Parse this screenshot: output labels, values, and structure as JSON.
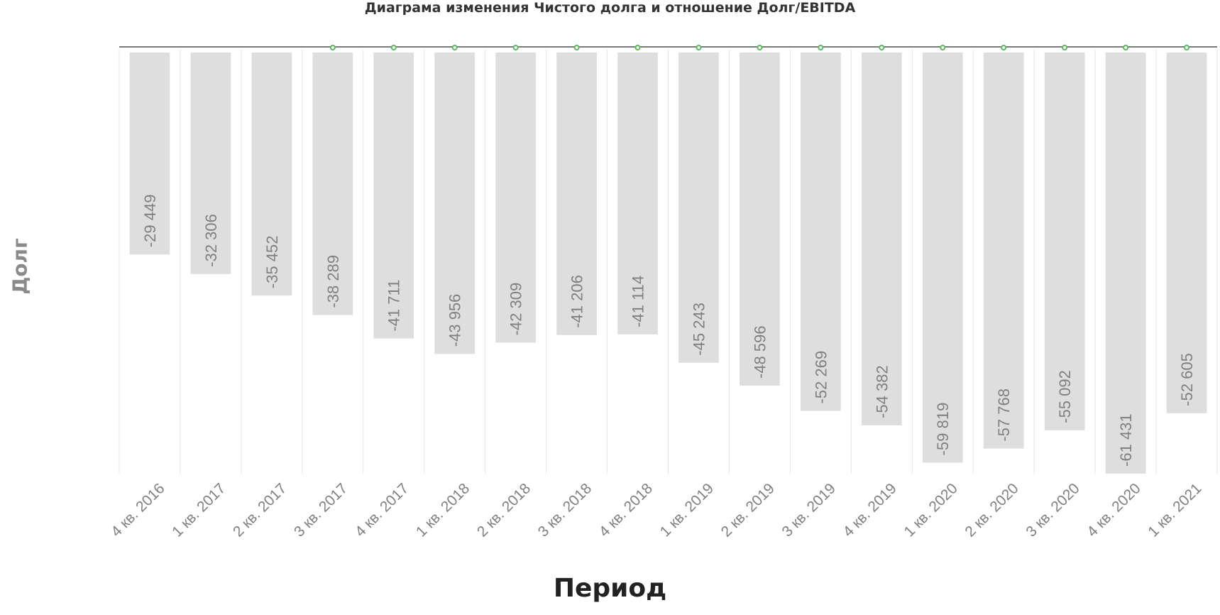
{
  "title": "Диаграма изменения Чистого долга и отношение Долг/EBITDA",
  "chart_data": {
    "type": "bar",
    "title": "Диаграма изменения Чистого долга и отношение Долг/EBITDA",
    "xlabel": "Период",
    "ylabel": "Долг",
    "categories": [
      "4 кв. 2016",
      "1 кв. 2017",
      "2 кв. 2017",
      "3 кв. 2017",
      "4 кв. 2017",
      "1 кв. 2018",
      "2 кв. 2018",
      "3 кв. 2018",
      "4 кв. 2018",
      "1 кв. 2019",
      "2 кв. 2019",
      "3 кв. 2019",
      "4 кв. 2019",
      "1 кв. 2020",
      "2 кв. 2020",
      "3 кв. 2020",
      "4 кв. 2020",
      "1 кв. 2021"
    ],
    "series": [
      {
        "values": [
          -29449,
          -32306,
          -35452,
          -38289,
          -41711,
          -43956,
          -42309,
          -41206,
          -41114,
          -45243,
          -48596,
          -52269,
          -54382,
          -59819,
          -57768,
          -55092,
          -61431,
          -52605
        ],
        "labels": [
          "-29 449",
          "-32 306",
          "-35 452",
          "-38 289",
          "-41 711",
          "-43 956",
          "-42 309",
          "-41 206",
          "-41 114",
          "-45 243",
          "-48 596",
          "-52 269",
          "-54 382",
          "-59 819",
          "-57 768",
          "-55 092",
          "-61 431",
          "-52 605"
        ],
        "color": "#dedede"
      }
    ],
    "ylim": [
      -61431,
      0
    ],
    "grid": true,
    "marker_color": "#5cb85c"
  }
}
